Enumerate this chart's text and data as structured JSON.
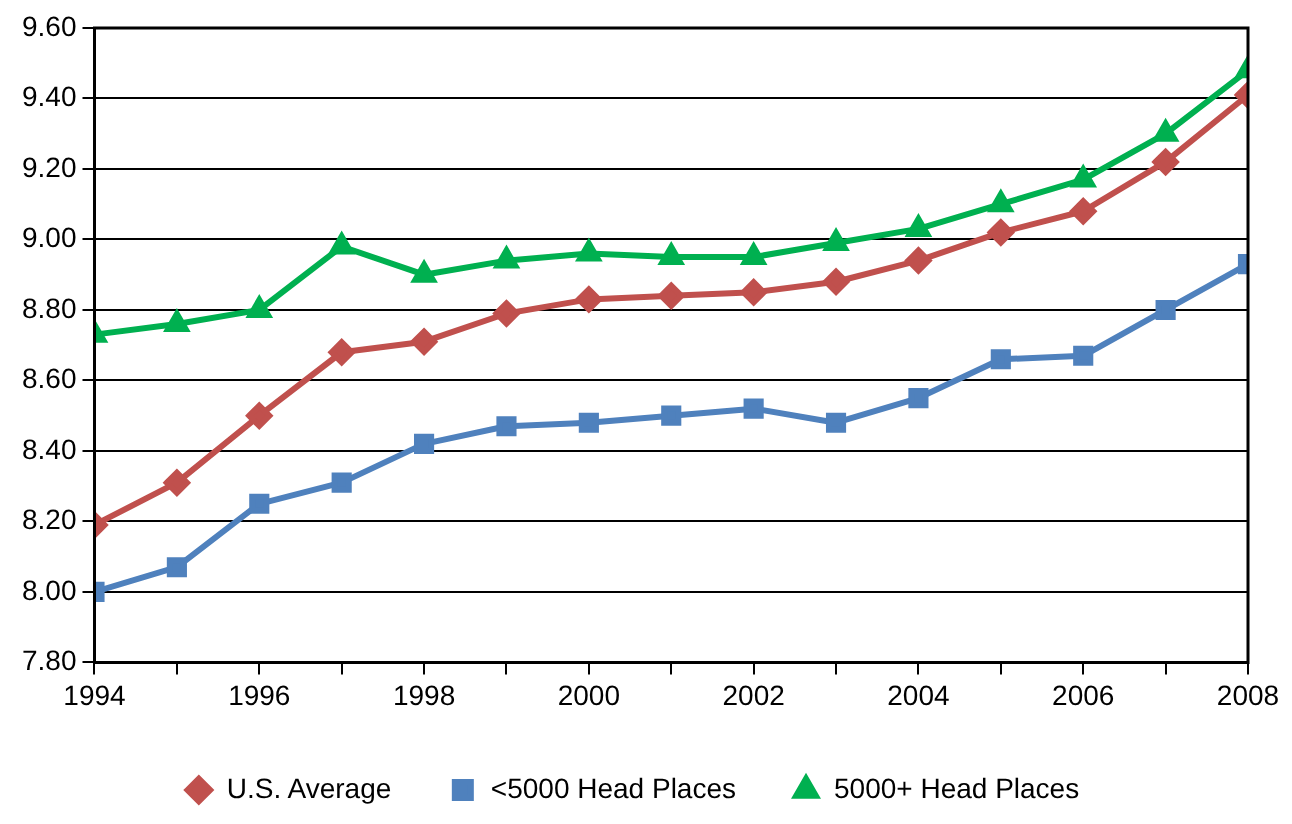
{
  "chart_data": {
    "type": "line",
    "x": [
      1994,
      1995,
      1996,
      1997,
      1998,
      1999,
      2000,
      2001,
      2002,
      2003,
      2004,
      2005,
      2006,
      2007,
      2008
    ],
    "xlim": [
      1994,
      2008
    ],
    "xticks": [
      1994,
      {
        "value": 1995,
        "label": null
      },
      1996,
      {
        "value": 1997,
        "label": null
      },
      1998,
      {
        "value": 1999,
        "label": null
      },
      2000,
      {
        "value": 2001,
        "label": null
      },
      2002,
      {
        "value": 2003,
        "label": null
      },
      2004,
      {
        "value": 2005,
        "label": null
      },
      2006,
      {
        "value": 2007,
        "label": null
      },
      2008
    ],
    "ylim": [
      7.8,
      9.6
    ],
    "yticks": [
      {
        "value": 7.8,
        "label": "7.80"
      },
      {
        "value": 8,
        "label": "8.00"
      },
      {
        "value": 8.2,
        "label": "8.20"
      },
      {
        "value": 8.4,
        "label": "8.40"
      },
      {
        "value": 8.6,
        "label": "8.60"
      },
      {
        "value": 8.8,
        "label": "8.80"
      },
      {
        "value": 9,
        "label": "9.00"
      },
      {
        "value": 9.2,
        "label": "9.20"
      },
      {
        "value": 9.4,
        "label": "9.40"
      },
      {
        "value": 9.6,
        "label": "9.60"
      }
    ],
    "grid": "y",
    "legend": "bottom",
    "line_style": "solid",
    "series": [
      {
        "name": "U.S. Average",
        "color": "#c0504d",
        "marker": "diamond",
        "values": [
          8.19,
          8.31,
          8.5,
          8.68,
          8.71,
          8.79,
          8.83,
          8.84,
          8.85,
          8.88,
          8.94,
          9.02,
          9.08,
          9.22,
          9.41
        ]
      },
      {
        "name": "<5000 Head Places",
        "color": "#4f81bd",
        "marker": "square",
        "values": [
          8.0,
          8.07,
          8.25,
          8.31,
          8.42,
          8.47,
          8.48,
          8.5,
          8.52,
          8.48,
          8.55,
          8.66,
          8.67,
          8.8,
          8.93
        ]
      },
      {
        "name": "5000+ Head Places",
        "color": "#00b050",
        "marker": "triangle",
        "values": [
          8.73,
          8.76,
          8.8,
          8.98,
          8.9,
          8.94,
          8.96,
          8.95,
          8.95,
          8.99,
          9.03,
          9.1,
          9.17,
          9.3,
          9.48
        ]
      }
    ]
  }
}
